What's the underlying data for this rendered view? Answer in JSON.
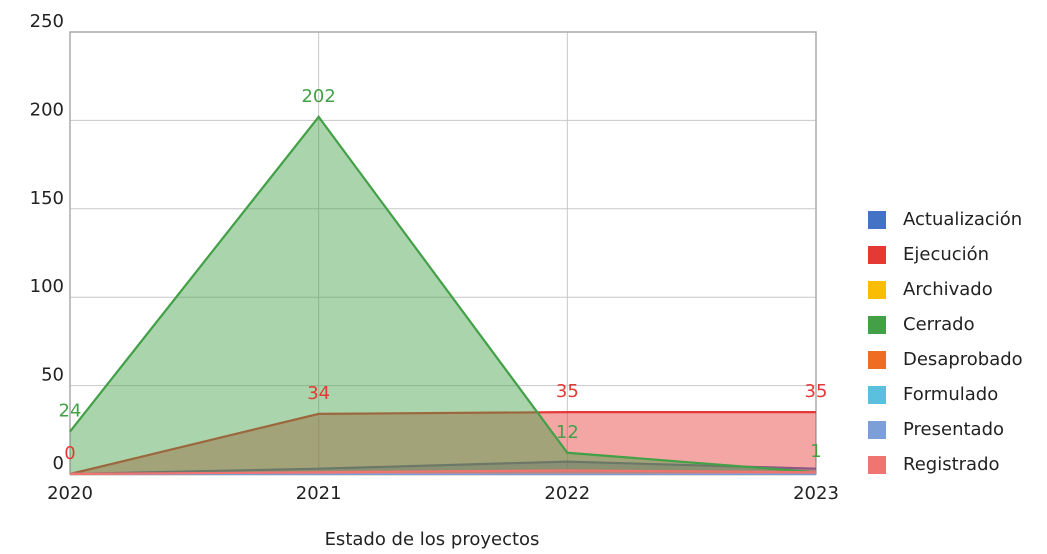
{
  "chart_data": {
    "type": "area",
    "x_label": "Estado de los proyectos",
    "categories": [
      "2020",
      "2021",
      "2022",
      "2023"
    ],
    "ylim": [
      0,
      250
    ],
    "yticks": [
      0,
      50,
      100,
      150,
      200,
      250
    ],
    "grid": true,
    "legend": "right",
    "series": [
      {
        "name": "Actualización",
        "color": "#4472c4",
        "values": [
          0,
          3,
          7,
          3
        ]
      },
      {
        "name": "Ejecución",
        "color": "#e53935",
        "values": [
          0,
          34,
          35,
          35
        ],
        "show_labels": true
      },
      {
        "name": "Archivado",
        "color": "#fbbc05",
        "values": [
          0,
          0,
          0,
          0
        ]
      },
      {
        "name": "Cerrado",
        "color": "#43a047",
        "values": [
          24,
          202,
          12,
          1
        ],
        "show_labels": true
      },
      {
        "name": "Desaprobado",
        "color": "#ef6c22",
        "values": [
          0,
          0,
          0,
          0
        ]
      },
      {
        "name": "Formulado",
        "color": "#5bc0de",
        "values": [
          0,
          0,
          0,
          0
        ]
      },
      {
        "name": "Presentado",
        "color": "#7b9fd6",
        "values": [
          0,
          0,
          0,
          0
        ]
      },
      {
        "name": "Registrado",
        "color": "#f07470",
        "values": [
          0,
          1,
          2,
          1
        ]
      }
    ]
  }
}
